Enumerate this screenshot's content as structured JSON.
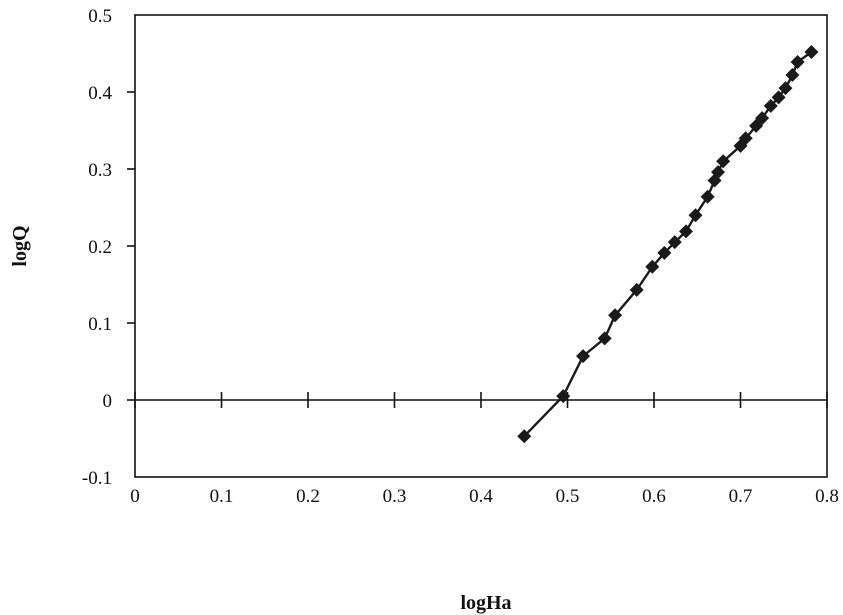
{
  "chart_data": {
    "type": "line",
    "title": "",
    "xlabel": "logHa",
    "ylabel": "logQ",
    "xlim": [
      0,
      0.8
    ],
    "ylim": [
      -0.1,
      0.5
    ],
    "x_ticks": [
      "0",
      "0.1",
      "0.2",
      "0.3",
      "0.4",
      "0.5",
      "0.6",
      "0.7",
      "0.8"
    ],
    "y_ticks": [
      "0.5",
      "0.4",
      "0.3",
      "0.2",
      "0.1",
      "0",
      "-0.1"
    ],
    "grid": false,
    "legend": "none",
    "marker": "diamond",
    "color": "#1a1a1a",
    "series": [
      {
        "points": [
          [
            0.45,
            -0.047
          ],
          [
            0.495,
            0.005
          ],
          [
            0.518,
            0.057
          ],
          [
            0.543,
            0.08
          ],
          [
            0.555,
            0.11
          ],
          [
            0.58,
            0.143
          ],
          [
            0.598,
            0.173
          ],
          [
            0.612,
            0.191
          ],
          [
            0.624,
            0.205
          ],
          [
            0.637,
            0.219
          ],
          [
            0.648,
            0.24
          ],
          [
            0.662,
            0.264
          ],
          [
            0.67,
            0.285
          ],
          [
            0.674,
            0.296
          ],
          [
            0.68,
            0.31
          ],
          [
            0.7,
            0.33
          ],
          [
            0.706,
            0.34
          ],
          [
            0.718,
            0.356
          ],
          [
            0.725,
            0.366
          ],
          [
            0.735,
            0.382
          ],
          [
            0.744,
            0.393
          ],
          [
            0.752,
            0.405
          ],
          [
            0.76,
            0.422
          ],
          [
            0.766,
            0.439
          ],
          [
            0.782,
            0.452
          ]
        ]
      }
    ]
  }
}
